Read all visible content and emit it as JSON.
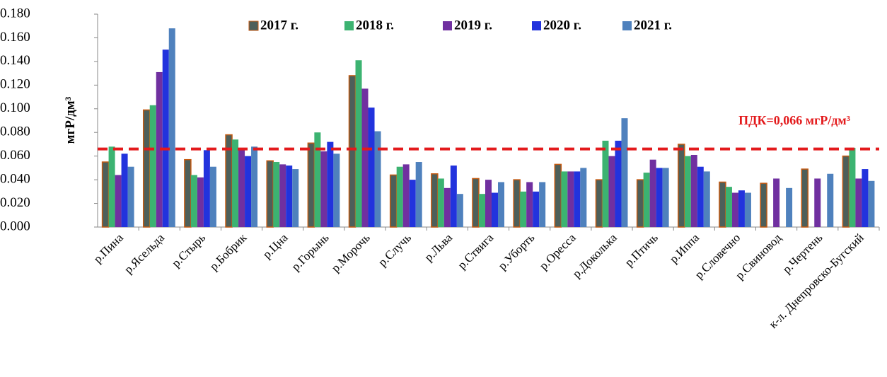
{
  "chart_data": {
    "type": "bar",
    "y_label": "мгР/дм³",
    "annotation": "ПДК=0,066 мгР/дм³",
    "threshold": 0.066,
    "threshold_color": "#e31a1c",
    "categories": [
      "р.Пина",
      "р.Ясельда",
      "р.Стырь",
      "р.Бобрик",
      "р.Цна",
      "р.Горынь",
      "р.Морочь",
      "р.Случь",
      "р.Льва",
      "р.Ствига",
      "р.Уборть",
      "р.Оресса",
      "р.Доколька",
      "р.Птичь",
      "р.Иппа",
      "р.Словечно",
      "р.Свиновод",
      "р.Чертень",
      "к-л. Днепровско-Бугский"
    ],
    "series": [
      {
        "name": "2017 г.",
        "color": "#4d5f5a",
        "values": [
          0.055,
          0.099,
          0.057,
          0.078,
          0.056,
          0.071,
          0.128,
          0.044,
          0.045,
          0.041,
          0.04,
          0.053,
          0.04,
          0.04,
          0.07,
          0.038,
          0.037,
          0.049,
          0.06
        ]
      },
      {
        "name": "2018 г.",
        "color": "#3cb371",
        "values": [
          0.068,
          0.103,
          0.044,
          0.074,
          0.055,
          0.08,
          0.141,
          0.051,
          0.041,
          0.028,
          0.03,
          0.047,
          0.073,
          0.046,
          0.06,
          0.034,
          null,
          null,
          0.067
        ]
      },
      {
        "name": "2019 г.",
        "color": "#7030a0",
        "values": [
          0.044,
          0.131,
          0.042,
          0.065,
          0.053,
          0.064,
          0.117,
          0.053,
          0.033,
          0.04,
          0.038,
          0.047,
          0.06,
          0.057,
          0.061,
          0.029,
          0.041,
          0.041,
          0.041
        ]
      },
      {
        "name": "2020 г.",
        "color": "#2233dd",
        "values": [
          0.062,
          0.15,
          0.065,
          0.06,
          0.052,
          0.072,
          0.101,
          0.04,
          0.052,
          0.029,
          0.03,
          0.047,
          0.073,
          0.05,
          0.051,
          0.031,
          null,
          null,
          0.049
        ]
      },
      {
        "name": "2021 г.",
        "color": "#4f81bd",
        "values": [
          0.051,
          0.168,
          0.051,
          0.068,
          0.049,
          0.062,
          0.081,
          0.055,
          0.028,
          0.038,
          0.038,
          0.05,
          0.092,
          0.05,
          0.047,
          0.029,
          0.033,
          0.045,
          0.039
        ]
      }
    ],
    "ylim": [
      0,
      0.18
    ],
    "yticks": [
      {
        "value": 0,
        "label": "0.000"
      },
      {
        "value": 0.02,
        "label": "0.020"
      },
      {
        "value": 0.04,
        "label": "0.040"
      },
      {
        "value": 0.06,
        "label": "0.060"
      },
      {
        "value": 0.08,
        "label": "0.080"
      },
      {
        "value": 0.1,
        "label": "0.100"
      },
      {
        "value": 0.12,
        "label": "0.120"
      },
      {
        "value": 0.14,
        "label": "0.140"
      },
      {
        "value": 0.16,
        "label": "0.160"
      },
      {
        "value": 0.18,
        "label": "0.180"
      }
    ],
    "grid": false
  }
}
